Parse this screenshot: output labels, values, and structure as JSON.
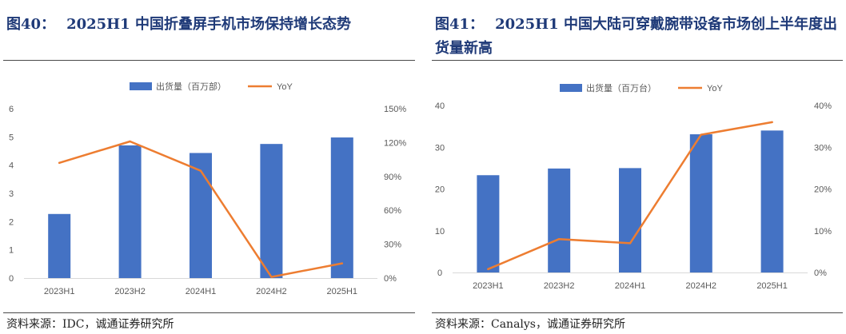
{
  "colors": {
    "bar": "#4472C4",
    "line": "#ED7D31",
    "title": "#1f3a78"
  },
  "charts": [
    {
      "label": "图40：",
      "title": "2025H1 中国折叠屏手机市场保持增长态势",
      "source": "资料来源：IDC，诚通证券研究所",
      "legend_bar": "出货量（百万部）",
      "legend_line": "YoY"
    },
    {
      "label": "图41：",
      "title": "2025H1 中国大陆可穿戴腕带设备市场创上半年度出货量新高",
      "source": "资料来源：Canalys，诚通证券研究所",
      "legend_bar": "出货量（百万台）",
      "legend_line": "YoY"
    }
  ],
  "chart_data": [
    {
      "type": "bar",
      "title": "2025H1 中国折叠屏手机市场保持增长态势",
      "categories": [
        "2023H1",
        "2023H2",
        "2024H1",
        "2024H2",
        "2025H1"
      ],
      "series": [
        {
          "name": "出货量（百万部）",
          "type": "bar",
          "axis": "left",
          "values": [
            2.27,
            4.7,
            4.43,
            4.75,
            4.98
          ]
        },
        {
          "name": "YoY",
          "type": "line",
          "axis": "right",
          "values": [
            102,
            121,
            95,
            1,
            13
          ]
        }
      ],
      "ylim": [
        0,
        6
      ],
      "yticks": [
        0,
        1,
        2,
        3,
        4,
        5,
        6
      ],
      "ytick_labels": [
        "0",
        "1",
        "2",
        "3",
        "4",
        "5",
        "6"
      ],
      "y2lim": [
        0,
        150
      ],
      "y2ticks": [
        0,
        30,
        60,
        90,
        120,
        150
      ],
      "y2tick_labels": [
        "0%",
        "30%",
        "60%",
        "90%",
        "120%",
        "150%"
      ],
      "legend": "top-center",
      "grid": false
    },
    {
      "type": "bar",
      "title": "2025H1 中国大陆可穿戴腕带设备市场创上半年度出货量新高",
      "categories": [
        "2023H1",
        "2023H2",
        "2024H1",
        "2024H2",
        "2025H1"
      ],
      "series": [
        {
          "name": "出货量（百万台）",
          "type": "bar",
          "axis": "left",
          "values": [
            23.3,
            24.9,
            25.0,
            33.1,
            34.0
          ]
        },
        {
          "name": "YoY",
          "type": "line",
          "axis": "right",
          "values": [
            0.8,
            8,
            7,
            33,
            36
          ]
        }
      ],
      "ylim": [
        0,
        40
      ],
      "yticks": [
        0,
        10,
        20,
        30,
        40
      ],
      "ytick_labels": [
        "0",
        "10",
        "20",
        "30",
        "40"
      ],
      "y2lim": [
        0,
        40
      ],
      "y2ticks": [
        0,
        10,
        20,
        30,
        40
      ],
      "y2tick_labels": [
        "0%",
        "10%",
        "20%",
        "30%",
        "40%"
      ],
      "legend": "top-center",
      "grid": false
    }
  ]
}
